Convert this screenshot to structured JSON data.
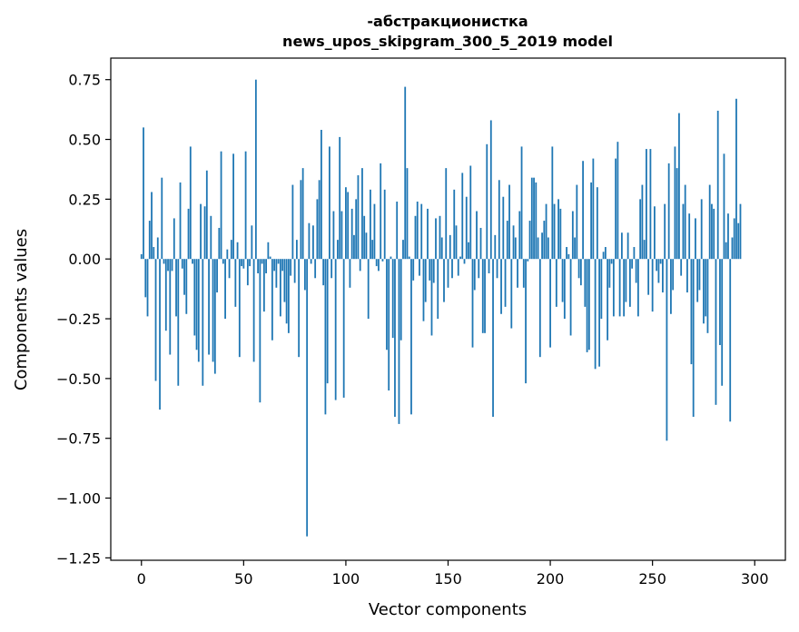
{
  "chart_data": {
    "type": "bar",
    "title": "-абстракционистка",
    "subtitle": "news_upos_skipgram_300_5_2019 model",
    "xlabel": "Vector components",
    "ylabel": "Components values",
    "xlim": [
      -15,
      315
    ],
    "ylim": [
      -1.26,
      0.84
    ],
    "xticks": [
      0,
      50,
      100,
      150,
      200,
      250,
      300
    ],
    "xtick_labels": [
      "0",
      "50",
      "100",
      "150",
      "200",
      "250",
      "300"
    ],
    "yticks": [
      0.75,
      0.5,
      0.25,
      0.0,
      -0.25,
      -0.5,
      -0.75,
      -1.0,
      -1.25
    ],
    "ytick_labels": [
      "0.75",
      "0.50",
      "0.25",
      "0.00",
      "−0.25",
      "−0.50",
      "−0.75",
      "−1.00",
      "−1.25"
    ],
    "grid": false,
    "bar_color": "#1f77b4",
    "series": [
      {
        "values": [
          0.02,
          0.55,
          -0.16,
          -0.24,
          0.16,
          0.28,
          0.05,
          -0.51,
          0.09,
          -0.63,
          0.34,
          -0.02,
          -0.3,
          -0.05,
          -0.4,
          -0.05,
          0.17,
          -0.24,
          -0.53,
          0.32,
          -0.04,
          -0.15,
          -0.23,
          0.21,
          0.47,
          -0.02,
          -0.32,
          -0.38,
          -0.43,
          0.23,
          -0.53,
          0.22,
          0.37,
          -0.4,
          0.18,
          -0.43,
          -0.48,
          -0.14,
          0.13,
          0.45,
          -0.02,
          -0.25,
          0.04,
          -0.08,
          0.08,
          0.44,
          -0.2,
          0.07,
          -0.41,
          -0.03,
          -0.04,
          0.45,
          -0.11,
          -0.03,
          0.14,
          -0.43,
          0.75,
          -0.06,
          -0.6,
          -0.02,
          -0.22,
          -0.06,
          0.07,
          0.01,
          -0.34,
          -0.05,
          -0.12,
          -0.02,
          -0.24,
          -0.05,
          -0.18,
          -0.27,
          -0.31,
          -0.07,
          0.31,
          -0.1,
          0.08,
          -0.41,
          0.33,
          0.38,
          -0.13,
          -1.16,
          0.15,
          -0.02,
          0.14,
          -0.08,
          0.25,
          0.33,
          0.54,
          -0.11,
          -0.65,
          -0.52,
          0.47,
          -0.08,
          0.2,
          -0.59,
          0.08,
          0.51,
          0.2,
          -0.58,
          0.3,
          0.28,
          -0.12,
          0.21,
          0.1,
          0.25,
          0.35,
          -0.05,
          0.38,
          0.18,
          0.11,
          -0.25,
          0.29,
          0.08,
          0.23,
          -0.03,
          -0.05,
          0.4,
          -0.01,
          0.29,
          -0.38,
          -0.55,
          0.01,
          -0.33,
          -0.66,
          0.24,
          -0.69,
          -0.34,
          0.08,
          0.72,
          0.38,
          0.01,
          -0.65,
          -0.09,
          0.18,
          0.24,
          -0.07,
          0.23,
          -0.26,
          -0.18,
          0.21,
          -0.09,
          -0.32,
          -0.1,
          0.17,
          -0.25,
          0.18,
          0.09,
          -0.18,
          0.38,
          -0.12,
          0.1,
          -0.08,
          0.29,
          0.14,
          -0.07,
          0.01,
          0.36,
          -0.02,
          0.26,
          0.07,
          0.39,
          -0.37,
          -0.13,
          0.2,
          -0.08,
          0.13,
          -0.31,
          -0.31,
          0.48,
          -0.06,
          0.58,
          -0.66,
          0.1,
          -0.08,
          0.33,
          -0.23,
          0.26,
          -0.2,
          0.16,
          0.31,
          -0.29,
          0.14,
          0.09,
          -0.12,
          0.2,
          0.47,
          -0.12,
          -0.52,
          -0.01,
          0.16,
          0.34,
          0.34,
          0.32,
          0.09,
          -0.41,
          0.11,
          0.16,
          0.23,
          0.09,
          -0.37,
          0.47,
          0.23,
          -0.2,
          0.25,
          0.21,
          -0.18,
          -0.25,
          0.05,
          0.02,
          -0.32,
          0.2,
          0.09,
          0.31,
          -0.08,
          -0.11,
          0.41,
          -0.2,
          -0.39,
          -0.38,
          0.32,
          0.42,
          -0.46,
          0.3,
          -0.45,
          -0.25,
          0.03,
          0.05,
          -0.34,
          -0.12,
          -0.02,
          -0.24,
          0.42,
          0.49,
          -0.24,
          0.11,
          -0.24,
          -0.18,
          0.11,
          -0.2,
          -0.04,
          0.05,
          -0.1,
          -0.24,
          0.25,
          0.31,
          0.08,
          0.46,
          -0.15,
          0.46,
          -0.22,
          0.22,
          -0.05,
          -0.1,
          -0.02,
          -0.14,
          0.23,
          -0.76,
          0.4,
          -0.23,
          -0.13,
          0.47,
          0.38,
          0.61,
          -0.07,
          0.23,
          0.31,
          -0.14,
          0.19,
          -0.44,
          -0.66,
          0.17,
          -0.18,
          -0.13,
          0.25,
          -0.27,
          -0.24,
          -0.31,
          0.31,
          0.23,
          0.21,
          -0.61,
          0.62,
          -0.36,
          -0.53,
          0.44,
          0.07,
          0.19,
          -0.68,
          0.09,
          0.17,
          0.67,
          0.15,
          0.23
        ]
      }
    ]
  }
}
